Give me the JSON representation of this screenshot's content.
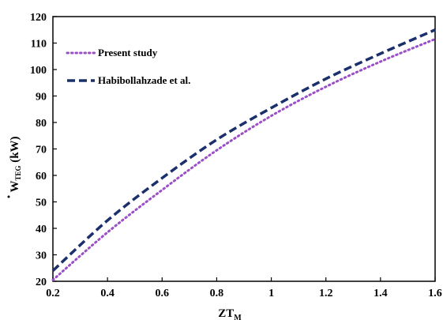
{
  "chart_data": {
    "type": "line",
    "xlabel": {
      "main": "ZT",
      "sub": "M"
    },
    "ylabel": {
      "main": "W",
      "sub": "TEG",
      "unit": " (kW)"
    },
    "xlim": [
      0.2,
      1.6
    ],
    "ylim": [
      20,
      120
    ],
    "x_ticks": [
      "0.2",
      "0.4",
      "0.6",
      "0.8",
      "1",
      "1.2",
      "1.4",
      "1.6"
    ],
    "y_ticks": [
      "20",
      "30",
      "40",
      "50",
      "60",
      "70",
      "80",
      "90",
      "100",
      "110",
      "120"
    ],
    "grid": false,
    "legend_position": "top-left",
    "x": [
      0.2,
      0.4,
      0.6,
      0.8,
      1.0,
      1.2,
      1.4,
      1.6
    ],
    "series": [
      {
        "name": "Present study",
        "style": "dotted",
        "color": "#9b4fc7",
        "values": [
          20.5,
          38.5,
          54.5,
          69.5,
          82.5,
          93.5,
          103,
          111.5
        ]
      },
      {
        "name": "Habibollahzade et al.",
        "style": "dashed",
        "color": "#1b2f6b",
        "values": [
          24,
          43,
          59,
          73.5,
          85.5,
          96.5,
          106,
          115
        ]
      }
    ]
  }
}
